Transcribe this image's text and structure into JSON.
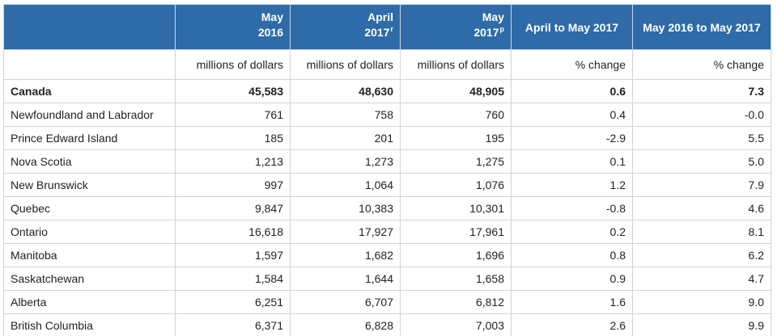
{
  "header": {
    "columns": [
      {
        "line1": "May",
        "line2": "2016",
        "sup": ""
      },
      {
        "line1": "April",
        "line2": "2017",
        "sup": "r"
      },
      {
        "line1": "May",
        "line2": "2017",
        "sup": "p"
      },
      {
        "line1": "April to May 2017"
      },
      {
        "line1": "May 2016 to May 2017"
      }
    ]
  },
  "units": [
    "millions of dollars",
    "millions of dollars",
    "millions of dollars",
    "% change",
    "% change"
  ],
  "rows": [
    {
      "label": "Canada",
      "values": [
        "45,583",
        "48,630",
        "48,905",
        "0.6",
        "7.3"
      ]
    },
    {
      "label": "Newfoundland and Labrador",
      "values": [
        "761",
        "758",
        "760",
        "0.4",
        "-0.0"
      ]
    },
    {
      "label": "Prince Edward Island",
      "values": [
        "185",
        "201",
        "195",
        "-2.9",
        "5.5"
      ]
    },
    {
      "label": "Nova Scotia",
      "values": [
        "1,213",
        "1,273",
        "1,275",
        "0.1",
        "5.0"
      ]
    },
    {
      "label": "New Brunswick",
      "values": [
        "997",
        "1,064",
        "1,076",
        "1.2",
        "7.9"
      ]
    },
    {
      "label": "Quebec",
      "values": [
        "9,847",
        "10,383",
        "10,301",
        "-0.8",
        "4.6"
      ]
    },
    {
      "label": "Ontario",
      "values": [
        "16,618",
        "17,927",
        "17,961",
        "0.2",
        "8.1"
      ]
    },
    {
      "label": "Manitoba",
      "values": [
        "1,597",
        "1,682",
        "1,696",
        "0.8",
        "6.2"
      ]
    },
    {
      "label": "Saskatchewan",
      "values": [
        "1,584",
        "1,644",
        "1,658",
        "0.9",
        "4.7"
      ]
    },
    {
      "label": "Alberta",
      "values": [
        "6,251",
        "6,707",
        "6,812",
        "1.6",
        "9.0"
      ]
    },
    {
      "label": "British Columbia",
      "values": [
        "6,371",
        "6,828",
        "7,003",
        "2.6",
        "9.9"
      ]
    }
  ],
  "colors": {
    "header_bg": "#2e6ba8",
    "header_text": "#ffffff",
    "border": "#d3d3d3"
  }
}
